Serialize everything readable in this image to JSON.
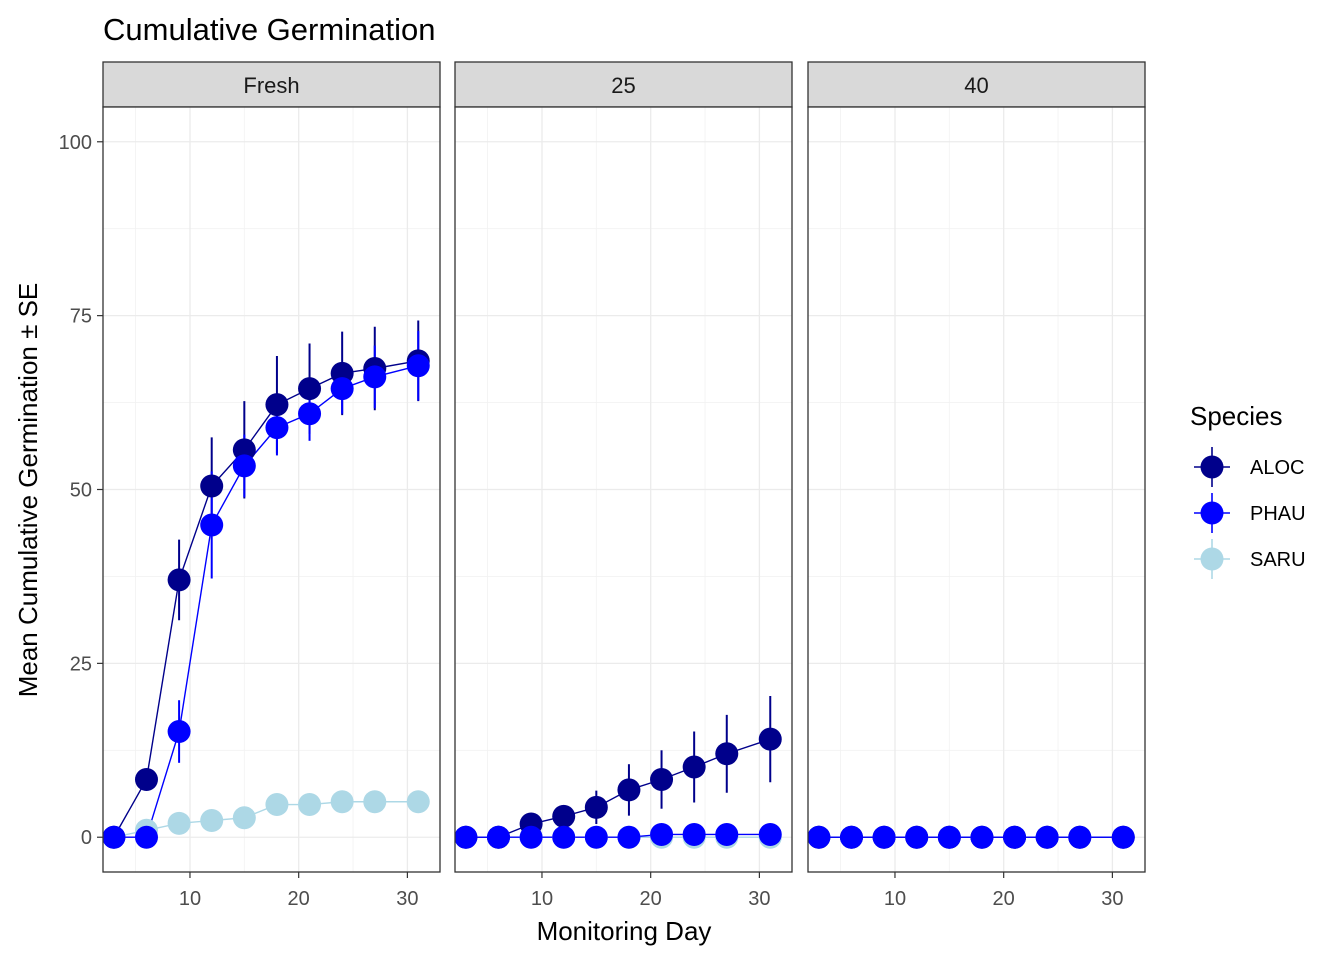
{
  "chart_data": {
    "type": "line",
    "title": "Cumulative Germination",
    "xlabel": "Monitoring Day",
    "ylabel": "Mean Cumulative Germination ± SE",
    "xlim": [
      2,
      33
    ],
    "ylim": [
      -5,
      105
    ],
    "x_ticks": [
      10,
      20,
      30
    ],
    "y_ticks": [
      0,
      25,
      50,
      75,
      100
    ],
    "grid": true,
    "legend": {
      "title": "Species",
      "position": "right"
    },
    "species": [
      {
        "name": "ALOC",
        "color": "#00008B"
      },
      {
        "name": "PHAU",
        "color": "#0000FF"
      },
      {
        "name": "SARU",
        "color": "#ADD8E6"
      }
    ],
    "panels": [
      {
        "label": "Fresh",
        "series": [
          {
            "name": "ALOC",
            "x": [
              3,
              6,
              9,
              12,
              15,
              18,
              21,
              24,
              27,
              31
            ],
            "y": [
              0,
              8.3,
              37,
              50.5,
              55.7,
              62.2,
              64.5,
              66.7,
              67.4,
              68.5
            ],
            "se": [
              0,
              0,
              5.8,
              7,
              7,
              7,
              6.5,
              6,
              6,
              5.8
            ]
          },
          {
            "name": "PHAU",
            "x": [
              3,
              6,
              9,
              12,
              15,
              18,
              21,
              24,
              27,
              31
            ],
            "y": [
              0,
              0,
              15.2,
              44.9,
              53.4,
              58.9,
              60.9,
              64.5,
              66.2,
              67.8
            ],
            "se": [
              0,
              0,
              4.5,
              7.7,
              4.5,
              4,
              3.9,
              3.6,
              4.5,
              5
            ]
          },
          {
            "name": "SARU",
            "x": [
              3,
              6,
              9,
              12,
              15,
              18,
              21,
              24,
              27,
              31
            ],
            "y": [
              0,
              1,
              2,
              2.4,
              2.8,
              4.7,
              4.7,
              5.1,
              5.1,
              5.1
            ],
            "se": [
              0,
              0,
              0,
              0,
              0,
              0,
              0,
              0,
              0,
              0
            ]
          }
        ]
      },
      {
        "label": "25",
        "series": [
          {
            "name": "ALOC",
            "x": [
              3,
              6,
              9,
              12,
              15,
              18,
              21,
              24,
              27,
              31
            ],
            "y": [
              0,
              0,
              1.9,
              3,
              4.3,
              6.8,
              8.3,
              10.1,
              12,
              14.1
            ],
            "se": [
              0,
              0,
              0,
              1.5,
              2.4,
              3.7,
              4.2,
              5.1,
              5.6,
              6.2
            ]
          },
          {
            "name": "PHAU",
            "x": [
              3,
              6,
              9,
              12,
              15,
              18,
              21,
              24,
              27,
              31
            ],
            "y": [
              0,
              0,
              0,
              0,
              0,
              0,
              0.4,
              0.4,
              0.4,
              0.4
            ],
            "se": [
              0,
              0,
              0,
              0,
              0,
              0,
              0,
              0,
              0,
              0
            ]
          },
          {
            "name": "SARU",
            "x": [
              3,
              6,
              9,
              12,
              15,
              18,
              21,
              24,
              27,
              31
            ],
            "y": [
              0,
              0,
              0,
              0,
              0,
              0,
              0,
              0,
              0,
              0
            ],
            "se": [
              0,
              0,
              0,
              0,
              0,
              0,
              0,
              0,
              0,
              0
            ]
          }
        ]
      },
      {
        "label": "40",
        "series": [
          {
            "name": "ALOC",
            "x": [
              3,
              6,
              9,
              12,
              15,
              18,
              21,
              24,
              27,
              31
            ],
            "y": [
              0,
              0,
              0,
              0,
              0,
              0,
              0,
              0,
              0,
              0
            ],
            "se": [
              0,
              0,
              0,
              0,
              0,
              0,
              0,
              0,
              0,
              0
            ]
          },
          {
            "name": "PHAU",
            "x": [
              3,
              6,
              9,
              12,
              15,
              18,
              21,
              24,
              27,
              31
            ],
            "y": [
              0,
              0,
              0,
              0,
              0,
              0,
              0,
              0,
              0,
              0
            ],
            "se": [
              0,
              0,
              0,
              0,
              0,
              0,
              0,
              0,
              0,
              0
            ]
          },
          {
            "name": "SARU",
            "x": [
              3,
              6,
              9,
              12,
              15,
              18,
              21,
              24,
              27,
              31
            ],
            "y": [
              0,
              0,
              0,
              0,
              0,
              0,
              0,
              0,
              0,
              0
            ],
            "se": [
              0,
              0,
              0,
              0,
              0,
              0,
              0,
              0,
              0,
              0
            ]
          }
        ]
      }
    ]
  }
}
